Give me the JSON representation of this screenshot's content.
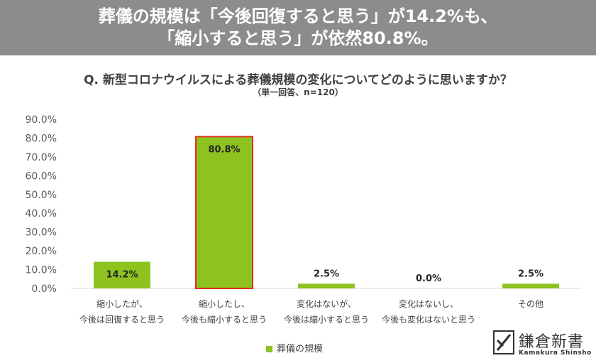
{
  "banner": {
    "line1": "葬儀の規模は「今後回復すると思う」が14.2%も、",
    "line2": "「縮小すると思う」が依然80.8%。"
  },
  "question": "Q. 新型コロナウイルスによる葬儀規模の変化についてどのように思いますか？",
  "subtitle": "（単一回答、n=120）",
  "colors": {
    "bar": "#8dc21f",
    "highlight_border": "#e0301e",
    "banner_bg": "#8c8c8c"
  },
  "chart_data": {
    "type": "bar",
    "categories": [
      [
        "縮小したが、",
        "今後は回復すると思う"
      ],
      [
        "縮小したし、",
        "今後も縮小すると思う"
      ],
      [
        "変化はないが、",
        "今後は縮小すると思う"
      ],
      [
        "変化はないし、",
        "今後も変化はないと思う"
      ],
      [
        "その他"
      ]
    ],
    "series": [
      {
        "name": "葬儀の規模",
        "values": [
          14.2,
          80.8,
          2.5,
          0.0,
          2.5
        ]
      }
    ],
    "data_labels": [
      "14.2%",
      "80.8%",
      "2.5%",
      "0.0%",
      "2.5%"
    ],
    "highlighted_index": 1,
    "yticks": [
      "0.0%",
      "10.0%",
      "20.0%",
      "30.0%",
      "40.0%",
      "50.0%",
      "60.0%",
      "70.0%",
      "80.0%",
      "90.0%"
    ],
    "ylim": [
      0,
      90
    ],
    "grid": false,
    "legend_position": "bottom"
  },
  "legend": {
    "label": "葬儀の規模"
  },
  "logo": {
    "name": "鎌倉新書",
    "sub": "Kamakura Shinsho"
  }
}
